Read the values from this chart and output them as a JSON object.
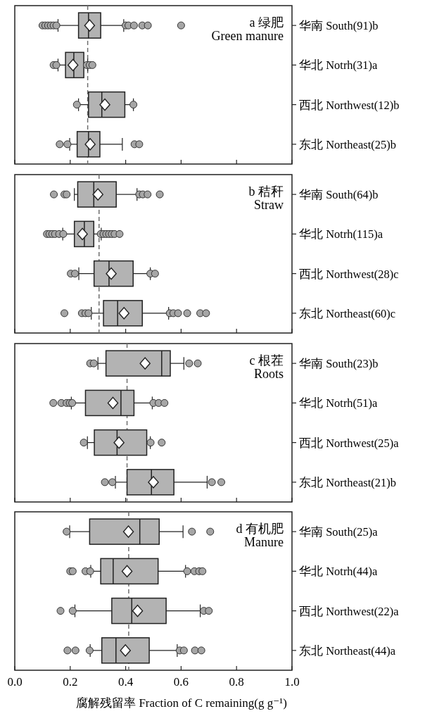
{
  "chart_data": [
    {
      "type": "box",
      "orientation": "horizontal",
      "categories": [
        "华南 South(91)b",
        "华北 Notrh(31)a",
        "西北 Northwest(12)b",
        "东北 Northeast(25)b"
      ],
      "color": "#b3b3b3",
      "xlim": [
        0,
        1
      ],
      "xticks": [
        0,
        0.2,
        0.4,
        0.6,
        0.8,
        1
      ],
      "tick_labels": "y",
      "annotations": [
        "a 绿肥",
        "Green manure"
      ],
      "ref_lines": [
        {
          "axis": "x",
          "value": 0.263,
          "color": "#6e6e6e",
          "line_style": "dashed"
        }
      ],
      "boxes": [
        {
          "low": 0.156,
          "q1": 0.23,
          "median": 0.266,
          "q3": 0.31,
          "high": 0.393,
          "mean": 0.27,
          "outliers": [
            0.1,
            0.11,
            0.12,
            0.13,
            0.14,
            0.15,
            0.4,
            0.41,
            0.43,
            0.46,
            0.48,
            0.6
          ]
        },
        {
          "low": 0.156,
          "q1": 0.183,
          "median": 0.213,
          "q3": 0.249,
          "high": 0.263,
          "mean": 0.21,
          "outliers": [
            0.14,
            0.15,
            0.26,
            0.27,
            0.28
          ]
        },
        {
          "low": 0.23,
          "q1": 0.266,
          "median": 0.314,
          "q3": 0.397,
          "high": 0.428,
          "mean": 0.325,
          "outliers": [
            0.224,
            0.428
          ]
        },
        {
          "low": 0.198,
          "q1": 0.225,
          "median": 0.266,
          "q3": 0.307,
          "high": 0.388,
          "mean": 0.272,
          "outliers": [
            0.162,
            0.19,
            0.432,
            0.449
          ]
        }
      ]
    },
    {
      "type": "box",
      "orientation": "horizontal",
      "categories": [
        "华南 South(64)b",
        "华北 Notrh(115)a",
        "西北 Northwest(28)c",
        "东北 Northeast(60)c"
      ],
      "color": "#b3b3b3",
      "xlim": [
        0,
        1
      ],
      "xticks": [
        0,
        0.2,
        0.4,
        0.6,
        0.8,
        1
      ],
      "tick_labels": "y",
      "annotations": [
        "b 秸秆",
        "Straw"
      ],
      "ref_lines": [
        {
          "axis": "x",
          "value": 0.304,
          "color": "#6e6e6e",
          "line_style": "dashed"
        }
      ],
      "boxes": [
        {
          "low": 0.215,
          "q1": 0.227,
          "median": 0.285,
          "q3": 0.366,
          "high": 0.441,
          "mean": 0.3,
          "outliers": [
            0.141,
            0.179,
            0.187,
            0.449,
            0.462,
            0.479,
            0.523
          ]
        },
        {
          "low": 0.173,
          "q1": 0.215,
          "median": 0.251,
          "q3": 0.285,
          "high": 0.312,
          "mean": 0.244,
          "outliers": [
            0.116,
            0.125,
            0.135,
            0.145,
            0.16,
            0.175,
            0.31,
            0.32,
            0.33,
            0.34,
            0.35,
            0.36,
            0.378
          ]
        },
        {
          "low": 0.231,
          "q1": 0.286,
          "median": 0.34,
          "q3": 0.427,
          "high": 0.489,
          "mean": 0.348,
          "outliers": [
            0.202,
            0.217,
            0.489,
            0.506
          ]
        },
        {
          "low": 0.276,
          "q1": 0.32,
          "median": 0.371,
          "q3": 0.46,
          "high": 0.555,
          "mean": 0.394,
          "outliers": [
            0.179,
            0.242,
            0.255,
            0.266,
            0.559,
            0.572,
            0.589,
            0.622,
            0.669,
            0.69
          ]
        }
      ]
    },
    {
      "type": "box",
      "orientation": "horizontal",
      "categories": [
        "华南 South(23)b",
        "华北 Notrh(51)a",
        "西北 Northwest(25)a",
        "东北 Northeast(21)b"
      ],
      "color": "#b3b3b3",
      "xlim": [
        0,
        1
      ],
      "xticks": [
        0,
        0.2,
        0.4,
        0.6,
        0.8,
        1
      ],
      "tick_labels": "y",
      "annotations": [
        "c 根茬",
        "Roots"
      ],
      "ref_lines": [
        {
          "axis": "x",
          "value": 0.405,
          "color": "#6e6e6e",
          "line_style": "dashed"
        }
      ],
      "boxes": [
        {
          "low": 0.3,
          "q1": 0.329,
          "median": 0.53,
          "q3": 0.561,
          "high": 0.61,
          "mean": 0.47,
          "outliers": [
            0.272,
            0.285,
            0.629,
            0.66
          ]
        },
        {
          "low": 0.204,
          "q1": 0.255,
          "median": 0.383,
          "q3": 0.43,
          "high": 0.496,
          "mean": 0.354,
          "outliers": [
            0.139,
            0.168,
            0.187,
            0.198,
            0.207,
            0.5,
            0.519,
            0.54
          ]
        },
        {
          "low": 0.262,
          "q1": 0.287,
          "median": 0.369,
          "q3": 0.476,
          "high": 0.489,
          "mean": 0.376,
          "outliers": [
            0.249,
            0.49,
            0.53
          ]
        },
        {
          "low": 0.363,
          "q1": 0.405,
          "median": 0.493,
          "q3": 0.574,
          "high": 0.694,
          "mean": 0.5,
          "outliers": [
            0.325,
            0.352,
            0.711,
            0.745
          ]
        }
      ]
    },
    {
      "type": "box",
      "orientation": "horizontal",
      "categories": [
        "华南 South(25)a",
        "华北 Notrh(44)a",
        "西北 Northwest(22)a",
        "东北 Northeast(44)a"
      ],
      "color": "#b3b3b3",
      "xlim": [
        0,
        1
      ],
      "xticks": [
        {
          "value": 0,
          "label": "0.0"
        },
        0.2,
        0.4,
        0.6,
        0.8,
        {
          "value": 1,
          "label": "1.0"
        }
      ],
      "xlabel": "腐解残留率 Fraction of C remaining(g g⁻¹)",
      "annotations": [
        "d 有机肥",
        "Manure"
      ],
      "ref_lines": [
        {
          "axis": "x",
          "value": 0.411,
          "color": "#6e6e6e",
          "line_style": "dashed"
        }
      ],
      "boxes": [
        {
          "low": 0.198,
          "q1": 0.27,
          "median": 0.451,
          "q3": 0.521,
          "high": 0.607,
          "mean": 0.41,
          "outliers": [
            0.187,
            0.639,
            0.705
          ]
        },
        {
          "low": 0.274,
          "q1": 0.31,
          "median": 0.355,
          "q3": 0.517,
          "high": 0.616,
          "mean": 0.405,
          "outliers": [
            0.2,
            0.209,
            0.255,
            0.272,
            0.622,
            0.648,
            0.665,
            0.677
          ]
        },
        {
          "low": 0.217,
          "q1": 0.35,
          "median": 0.422,
          "q3": 0.546,
          "high": 0.669,
          "mean": 0.443,
          "outliers": [
            0.165,
            0.209,
            0.682,
            0.7
          ]
        },
        {
          "low": 0.272,
          "q1": 0.314,
          "median": 0.365,
          "q3": 0.485,
          "high": 0.586,
          "mean": 0.399,
          "outliers": [
            0.19,
            0.219,
            0.27,
            0.595,
            0.61,
            0.65,
            0.673
          ]
        }
      ]
    }
  ]
}
